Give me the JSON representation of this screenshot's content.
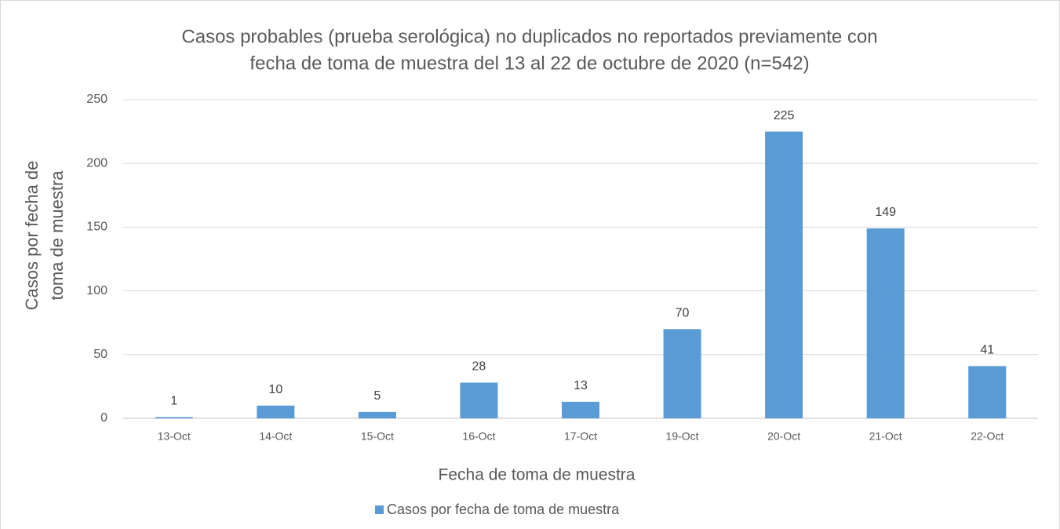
{
  "chart_data": {
    "type": "bar",
    "title": [
      "Casos probables (prueba serológica) no duplicados no reportados previamente con",
      "fecha de toma de muestra del 13 al 22 de octubre de 2020 (n=542)"
    ],
    "y_label": [
      "Casos por fecha de",
      "toma de muestra"
    ],
    "x_label": "Fecha de toma de muestra",
    "categories": [
      "13-Oct",
      "14-Oct",
      "15-Oct",
      "16-Oct",
      "17-Oct",
      "19-Oct",
      "20-Oct",
      "21-Oct",
      "22-Oct"
    ],
    "series": [
      {
        "name": "Casos por fecha de toma de muestra",
        "color": "#5b9bd5",
        "values": [
          1,
          10,
          5,
          28,
          13,
          70,
          225,
          149,
          41
        ]
      }
    ],
    "ylim": [
      0,
      250
    ],
    "yticks": [
      0,
      50,
      100,
      150,
      200,
      250
    ],
    "grid": true,
    "legend": "bottom"
  }
}
